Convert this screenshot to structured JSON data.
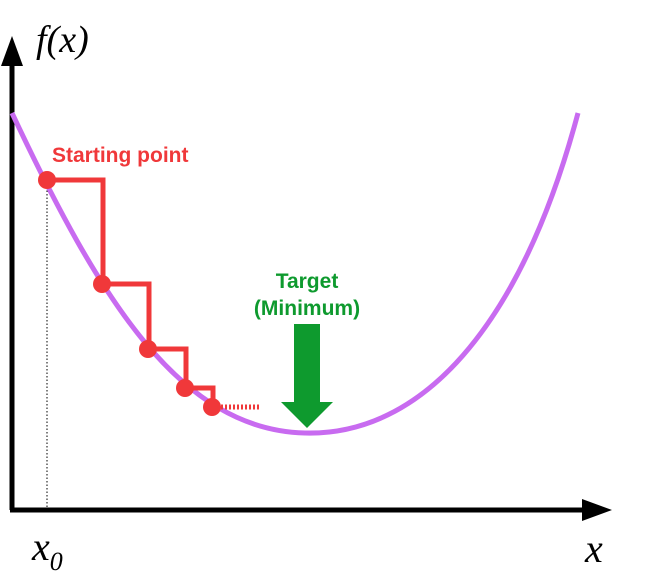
{
  "labels": {
    "y_axis": "f(x)",
    "x_axis": "x",
    "x0_base": "x",
    "x0_sub": "0",
    "start": "Starting point",
    "target_line1": "Target",
    "target_line2": "(Minimum)"
  },
  "colors": {
    "curve": "#c86bf0",
    "steps": "#f0383a",
    "target": "#0e9a2e",
    "axis": "#000000"
  }
}
